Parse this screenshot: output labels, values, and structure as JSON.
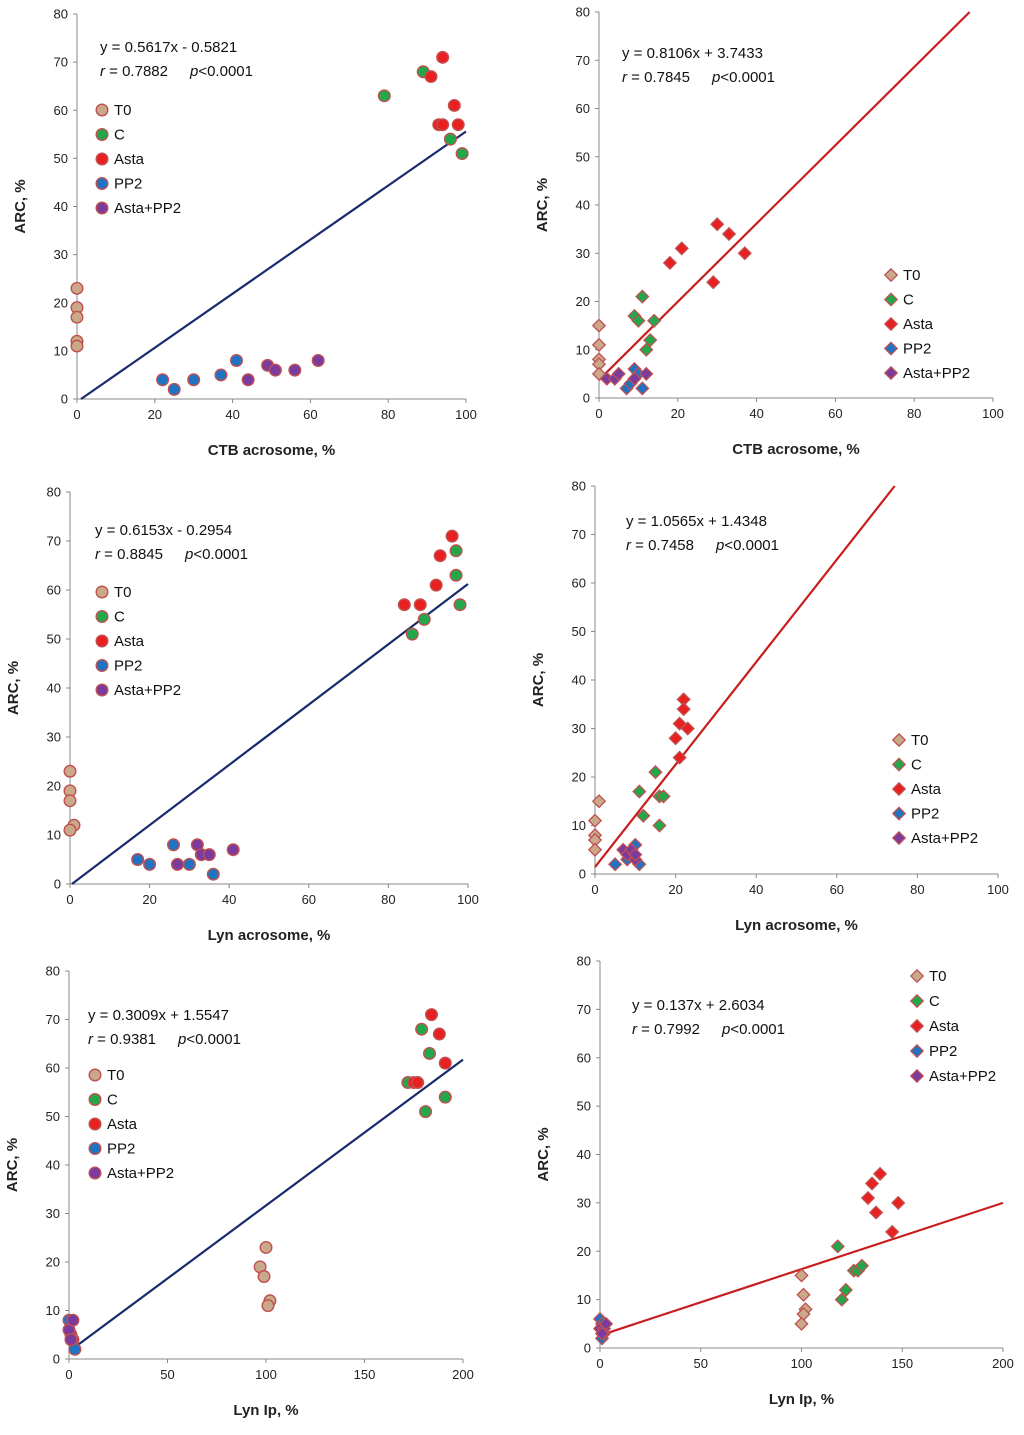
{
  "colors": {
    "T0": "#c9a98a",
    "C": "#22a84a",
    "Asta": "#e8201f",
    "PP2": "#1f73c2",
    "Asta+PP2": "#7a3a9e",
    "outline": "#c05050",
    "line_navy": "#1a2a6c",
    "line_red": "#c81e1e",
    "axis": "#888888"
  },
  "chart_data": [
    {
      "type": "scatter",
      "marker": "circle",
      "xlabel": "CTB acrosome, %",
      "ylabel": "ARC, %",
      "xlim": [
        0,
        100
      ],
      "ylim": [
        0,
        80
      ],
      "xticks": [
        0,
        20,
        40,
        60,
        80,
        100
      ],
      "yticks": [
        0,
        10,
        20,
        30,
        40,
        50,
        60,
        70,
        80
      ],
      "equation": {
        "line1": "y = 0.5617x - 0.5821",
        "r_label": "r",
        "r_value": " = 0.7882",
        "p_label": "p",
        "p_value": "<0.0001"
      },
      "fit": {
        "slope": 0.5617,
        "intercept": -0.5821,
        "x_start": 0,
        "x_end": 100
      },
      "legend_position": "upper-left",
      "series": [
        {
          "name": "T0",
          "points": [
            [
              0,
              23
            ],
            [
              0,
              19
            ],
            [
              0,
              17
            ],
            [
              0,
              12
            ],
            [
              0,
              11
            ]
          ]
        },
        {
          "name": "C",
          "points": [
            [
              79,
              63
            ],
            [
              89,
              68
            ],
            [
              96,
              54
            ],
            [
              99,
              51
            ]
          ]
        },
        {
          "name": "Asta",
          "points": [
            [
              94,
              71
            ],
            [
              91,
              67
            ],
            [
              93,
              57
            ],
            [
              94,
              57
            ],
            [
              97,
              61
            ],
            [
              98,
              57
            ]
          ]
        },
        {
          "name": "PP2",
          "points": [
            [
              22,
              4
            ],
            [
              25,
              2
            ],
            [
              30,
              4
            ],
            [
              37,
              5
            ],
            [
              41,
              8
            ]
          ]
        },
        {
          "name": "Asta+PP2",
          "points": [
            [
              44,
              4
            ],
            [
              49,
              7
            ],
            [
              51,
              6
            ],
            [
              56,
              6
            ],
            [
              62,
              8
            ]
          ]
        }
      ]
    },
    {
      "type": "scatter",
      "marker": "diamond",
      "xlabel": "CTB acrosome, %",
      "ylabel": "ARC, %",
      "xlim": [
        0,
        100
      ],
      "ylim": [
        0,
        80
      ],
      "xticks": [
        0,
        20,
        40,
        60,
        80,
        100
      ],
      "yticks": [
        0,
        10,
        20,
        30,
        40,
        50,
        60,
        70,
        80
      ],
      "equation": {
        "line1": "y = 0.8106x + 3.7433",
        "r_label": "r",
        "r_value": " = 0.7845",
        "p_label": "p",
        "p_value": "<0.0001"
      },
      "fit": {
        "slope": 0.8106,
        "intercept": 3.7433,
        "x_start": 0,
        "x_end": 100
      },
      "legend_position": "lower-right",
      "series": [
        {
          "name": "T0",
          "points": [
            [
              0,
              15
            ],
            [
              0,
              11
            ],
            [
              0,
              8
            ],
            [
              0,
              7
            ],
            [
              0,
              5
            ]
          ]
        },
        {
          "name": "C",
          "points": [
            [
              9,
              17
            ],
            [
              10,
              16
            ],
            [
              11,
              21
            ],
            [
              12,
              10
            ],
            [
              13,
              12
            ],
            [
              14,
              16
            ]
          ]
        },
        {
          "name": "Asta",
          "points": [
            [
              18,
              28
            ],
            [
              21,
              31
            ],
            [
              29,
              24
            ],
            [
              30,
              36
            ],
            [
              33,
              34
            ],
            [
              37,
              30
            ]
          ]
        },
        {
          "name": "PP2",
          "points": [
            [
              7,
              2
            ],
            [
              8,
              3
            ],
            [
              9,
              6
            ],
            [
              10,
              5
            ],
            [
              11,
              2
            ]
          ]
        },
        {
          "name": "Asta+PP2",
          "points": [
            [
              2,
              4
            ],
            [
              4,
              4
            ],
            [
              5,
              5
            ],
            [
              9,
              4
            ],
            [
              12,
              5
            ]
          ]
        }
      ]
    },
    {
      "type": "scatter",
      "marker": "circle",
      "xlabel": "Lyn acrosome, %",
      "ylabel": "ARC, %",
      "xlim": [
        0,
        100
      ],
      "ylim": [
        0,
        80
      ],
      "xticks": [
        0,
        20,
        40,
        60,
        80,
        100
      ],
      "yticks": [
        0,
        10,
        20,
        30,
        40,
        50,
        60,
        70,
        80
      ],
      "equation": {
        "line1": "y = 0.6153x - 0.2954",
        "r_label": "r",
        "r_value": " = 0.8845",
        "p_label": "p",
        "p_value": "<0.0001"
      },
      "fit": {
        "slope": 0.6153,
        "intercept": -0.2954,
        "x_start": 0,
        "x_end": 100
      },
      "legend_position": "upper-left",
      "series": [
        {
          "name": "T0",
          "points": [
            [
              0,
              23
            ],
            [
              0,
              19
            ],
            [
              0,
              17
            ],
            [
              1,
              12
            ],
            [
              0,
              11
            ]
          ]
        },
        {
          "name": "C",
          "points": [
            [
              86,
              51
            ],
            [
              89,
              54
            ],
            [
              97,
              68
            ],
            [
              97,
              63
            ],
            [
              98,
              57
            ]
          ]
        },
        {
          "name": "Asta",
          "points": [
            [
              84,
              57
            ],
            [
              88,
              57
            ],
            [
              92,
              61
            ],
            [
              93,
              67
            ],
            [
              96,
              71
            ]
          ]
        },
        {
          "name": "PP2",
          "points": [
            [
              17,
              5
            ],
            [
              20,
              4
            ],
            [
              26,
              8
            ],
            [
              30,
              4
            ],
            [
              36,
              2
            ]
          ]
        },
        {
          "name": "Asta+PP2",
          "points": [
            [
              27,
              4
            ],
            [
              32,
              8
            ],
            [
              33,
              6
            ],
            [
              35,
              6
            ],
            [
              41,
              7
            ]
          ]
        }
      ]
    },
    {
      "type": "scatter",
      "marker": "diamond",
      "xlabel": "Lyn acrosome, %",
      "ylabel": "ARC, %",
      "xlim": [
        0,
        100
      ],
      "ylim": [
        0,
        80
      ],
      "xticks": [
        0,
        20,
        40,
        60,
        80,
        100
      ],
      "yticks": [
        0,
        10,
        20,
        30,
        40,
        50,
        60,
        70,
        80
      ],
      "equation": {
        "line1": "y = 1.0565x + 1.4348",
        "r_label": "r",
        "r_value": " = 0.7458",
        "p_label": "p",
        "p_value": "<0.0001"
      },
      "fit": {
        "slope": 1.0565,
        "intercept": 1.4348,
        "x_start": 0,
        "x_end": 100
      },
      "legend_position": "lower-right",
      "series": [
        {
          "name": "T0",
          "points": [
            [
              1,
              15
            ],
            [
              0,
              11
            ],
            [
              0,
              8
            ],
            [
              0,
              7
            ],
            [
              0,
              5
            ]
          ]
        },
        {
          "name": "C",
          "points": [
            [
              11,
              17
            ],
            [
              12,
              12
            ],
            [
              15,
              21
            ],
            [
              16,
              10
            ],
            [
              16,
              16
            ],
            [
              17,
              16
            ]
          ]
        },
        {
          "name": "Asta",
          "points": [
            [
              20,
              28
            ],
            [
              21,
              31
            ],
            [
              21,
              24
            ],
            [
              22,
              36
            ],
            [
              22,
              34
            ],
            [
              23,
              30
            ]
          ]
        },
        {
          "name": "PP2",
          "points": [
            [
              5,
              2
            ],
            [
              8,
              3
            ],
            [
              10,
              6
            ],
            [
              11,
              2
            ],
            [
              9,
              4
            ]
          ]
        },
        {
          "name": "Asta+PP2",
          "points": [
            [
              7,
              5
            ],
            [
              8,
              4
            ],
            [
              9,
              5
            ],
            [
              10,
              3
            ],
            [
              10,
              4
            ]
          ]
        }
      ]
    },
    {
      "type": "scatter",
      "marker": "circle",
      "xlabel": "Lyn Ip, %",
      "ylabel": "ARC, %",
      "xlim": [
        0,
        200
      ],
      "ylim": [
        0,
        80
      ],
      "xticks": [
        0,
        50,
        100,
        150,
        200
      ],
      "yticks": [
        0,
        10,
        20,
        30,
        40,
        50,
        60,
        70,
        80
      ],
      "equation": {
        "line1": "y = 0.3009x + 1.5547",
        "r_label": "r",
        "r_value": " = 0.9381",
        "p_label": "p",
        "p_value": "<0.0001"
      },
      "fit": {
        "slope": 0.3009,
        "intercept": 1.5547,
        "x_start": 0,
        "x_end": 200
      },
      "legend_position": "middle-left",
      "series": [
        {
          "name": "T0",
          "points": [
            [
              97,
              19
            ],
            [
              100,
              23
            ],
            [
              99,
              17
            ],
            [
              102,
              12
            ],
            [
              101,
              11
            ]
          ]
        },
        {
          "name": "C",
          "points": [
            [
              172,
              57
            ],
            [
              179,
              68
            ],
            [
              181,
              51
            ],
            [
              183,
              63
            ],
            [
              191,
              54
            ]
          ]
        },
        {
          "name": "Asta",
          "points": [
            [
              175,
              57
            ],
            [
              177,
              57
            ],
            [
              184,
              71
            ],
            [
              188,
              67
            ],
            [
              191,
              61
            ]
          ]
        },
        {
          "name": "PP2",
          "points": [
            [
              0,
              8
            ],
            [
              1,
              5
            ],
            [
              2,
              4
            ],
            [
              3,
              2
            ]
          ]
        },
        {
          "name": "Asta+PP2",
          "points": [
            [
              0,
              6
            ],
            [
              1,
              4
            ],
            [
              2,
              8
            ]
          ]
        }
      ]
    },
    {
      "type": "scatter",
      "marker": "diamond",
      "xlabel": "Lyn Ip, %",
      "ylabel": "ARC, %",
      "xlim": [
        0,
        200
      ],
      "ylim": [
        0,
        80
      ],
      "xticks": [
        0,
        50,
        100,
        150,
        200
      ],
      "yticks": [
        0,
        10,
        20,
        30,
        40,
        50,
        60,
        70,
        80
      ],
      "equation": {
        "line1": "y = 0.137x + 2.6034",
        "r_label": "r",
        "r_value": " = 0.7992",
        "p_label": "p",
        "p_value": "<0.0001"
      },
      "fit": {
        "slope": 0.137,
        "intercept": 2.6034,
        "x_start": 0,
        "x_end": 200
      },
      "legend_position": "upper-right",
      "series": [
        {
          "name": "T0",
          "points": [
            [
              100,
              15
            ],
            [
              101,
              11
            ],
            [
              102,
              8
            ],
            [
              101,
              7
            ],
            [
              100,
              5
            ]
          ]
        },
        {
          "name": "C",
          "points": [
            [
              118,
              21
            ],
            [
              120,
              10
            ],
            [
              122,
              12
            ],
            [
              126,
              16
            ],
            [
              128,
              16
            ],
            [
              130,
              17
            ]
          ]
        },
        {
          "name": "Asta",
          "points": [
            [
              133,
              31
            ],
            [
              135,
              34
            ],
            [
              137,
              28
            ],
            [
              139,
              36
            ],
            [
              145,
              24
            ],
            [
              148,
              30
            ]
          ]
        },
        {
          "name": "PP2",
          "points": [
            [
              0,
              6
            ],
            [
              1,
              2
            ],
            [
              2,
              3
            ],
            [
              1,
              5
            ]
          ]
        },
        {
          "name": "Asta+PP2",
          "points": [
            [
              0,
              4
            ],
            [
              2,
              4
            ],
            [
              1,
              3
            ],
            [
              3,
              5
            ]
          ]
        }
      ]
    }
  ]
}
